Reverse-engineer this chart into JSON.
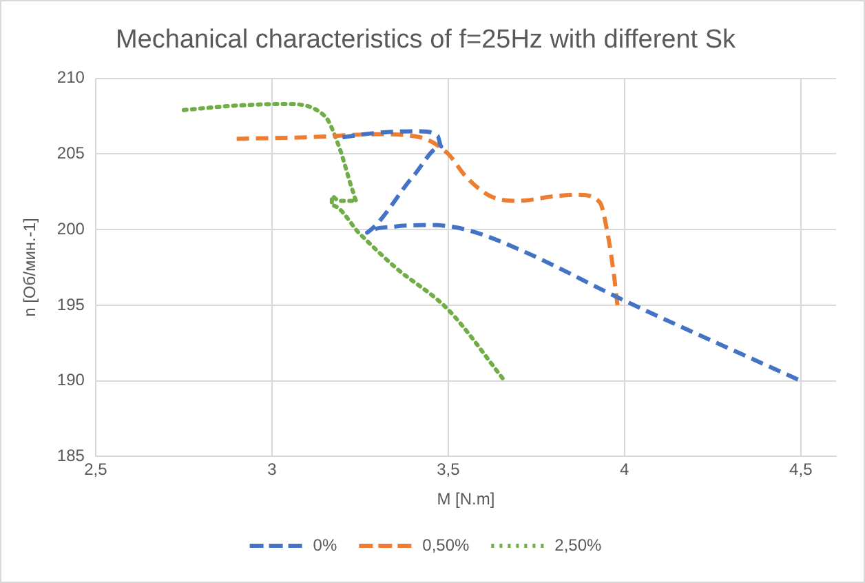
{
  "chart_data": {
    "type": "line",
    "title": "Mechanical characteristics of f=25Hz with different Sk",
    "xlabel": "M [N.m]",
    "ylabel": "n [Об/мин.-1]",
    "xlim": [
      2.5,
      4.6
    ],
    "xticks": [
      {
        "value": 2.5,
        "label": "2,5"
      },
      3,
      {
        "value": 3.5,
        "label": "3,5"
      },
      4,
      {
        "value": 4.5,
        "label": "4,5"
      }
    ],
    "ylim": [
      185,
      210
    ],
    "yticks": [
      185,
      190,
      195,
      200,
      205,
      210
    ],
    "grid": true,
    "legend": "bottom",
    "marker": "none",
    "series": [
      {
        "name": "0%",
        "color": "#4472c4",
        "line_style": "dashed",
        "x": [
          3.2,
          3.3,
          3.42,
          3.47,
          3.48,
          3.4,
          3.27,
          3.35,
          3.45,
          3.55,
          3.7,
          4.0,
          4.5
        ],
        "values": [
          206.1,
          206.4,
          206.5,
          206.2,
          205.5,
          203.5,
          199.8,
          200.2,
          200.3,
          200.0,
          198.7,
          195.3,
          190.0
        ]
      },
      {
        "name": "0,50%",
        "color": "#ed7d31",
        "line_style": "dashed",
        "x": [
          2.9,
          3.1,
          3.3,
          3.42,
          3.5,
          3.55,
          3.62,
          3.7,
          3.8,
          3.87,
          3.93,
          3.95,
          3.97,
          3.98
        ],
        "values": [
          206.0,
          206.1,
          206.3,
          206.1,
          205.0,
          203.5,
          202.2,
          201.9,
          202.2,
          202.3,
          201.8,
          200.0,
          197.0,
          195.0
        ]
      },
      {
        "name": "2,50%",
        "color": "#70ad47",
        "line_style": "dotted",
        "x": [
          2.75,
          2.9,
          3.04,
          3.15,
          3.19,
          3.23,
          3.24,
          3.19,
          3.17,
          3.17,
          3.25,
          3.35,
          3.5,
          3.66
        ],
        "values": [
          207.9,
          208.2,
          208.3,
          207.5,
          205.5,
          202.5,
          201.9,
          201.9,
          202.2,
          201.6,
          199.7,
          197.5,
          194.7,
          190.0
        ]
      }
    ]
  }
}
